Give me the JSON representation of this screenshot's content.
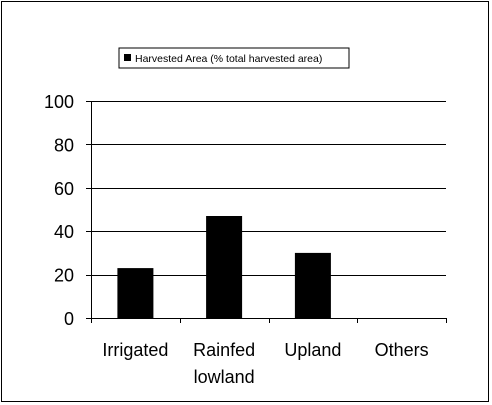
{
  "chart_data": {
    "type": "bar",
    "categories": [
      "Irrigated",
      "Rainfed lowland",
      "Upland",
      "Others"
    ],
    "category_lines": [
      [
        "Irrigated"
      ],
      [
        "Rainfed",
        "lowland"
      ],
      [
        "Upland"
      ],
      [
        "Others"
      ]
    ],
    "series": [
      {
        "name": "Harvested Area (% total harvested area)",
        "color": "#000000",
        "values": [
          23,
          47,
          30,
          0
        ]
      }
    ],
    "ylim": [
      0,
      100
    ],
    "yticks": [
      0,
      20,
      40,
      60,
      80,
      100
    ],
    "grid": true,
    "legend": "top"
  }
}
